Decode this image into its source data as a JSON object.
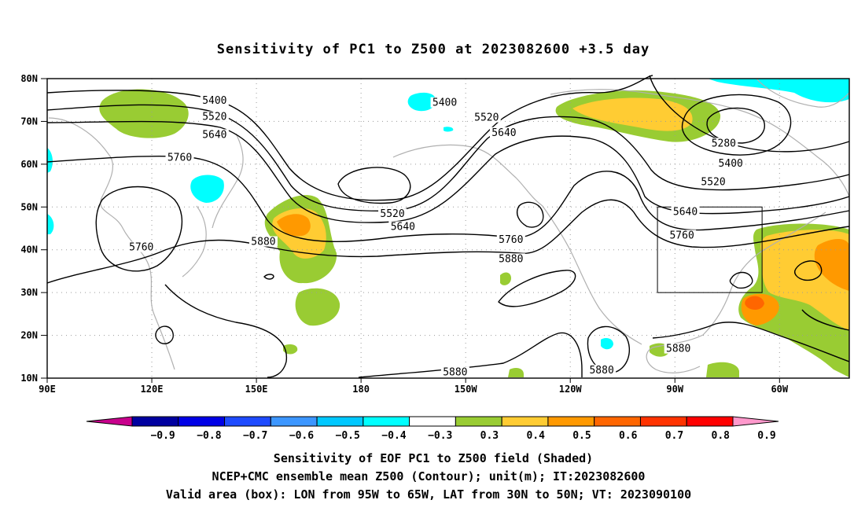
{
  "title": "Sensitivity of PC1 to Z500 at 2023082600 +3.5 day",
  "lat_labels": [
    "80N",
    "70N",
    "60N",
    "50N",
    "40N",
    "30N",
    "20N",
    "10N"
  ],
  "lon_labels": [
    "90E",
    "120E",
    "150E",
    "180",
    "150W",
    "120W",
    "90W",
    "60W"
  ],
  "colorbar": {
    "labels": [
      "−0.9",
      "−0.8",
      "−0.7",
      "−0.6",
      "−0.5",
      "−0.4",
      "−0.3",
      "0.3",
      "0.4",
      "0.5",
      "0.6",
      "0.7",
      "0.8",
      "0.9"
    ],
    "colors": [
      "#c8008c",
      "#0000a0",
      "#0000e6",
      "#1e4bff",
      "#3c96ff",
      "#00c8ff",
      "#00ffff",
      "#ffffff",
      "#99cc33",
      "#ffcc33",
      "#ff9900",
      "#ff6600",
      "#ff3300",
      "#ff0000",
      "#ff99cc"
    ]
  },
  "captions": {
    "line1": "Sensitivity of EOF PC1 to Z500 field (Shaded)",
    "line2": "NCEP+CMC ensemble mean Z500 (Contour); unit(m); IT:2023082600",
    "line3": "Valid area (box): LON from 95W to 65W, LAT from 30N to 50N; VT: 2023090100"
  },
  "contour_labels": [
    {
      "text": "5400",
      "lon": 138,
      "lat": 74.5
    },
    {
      "text": "5520",
      "lon": 138,
      "lat": 70.7
    },
    {
      "text": "5640",
      "lon": 138,
      "lat": 66.5
    },
    {
      "text": "5760",
      "lon": 128,
      "lat": 61.2
    },
    {
      "text": "5760",
      "lon": 117,
      "lat": 40.2
    },
    {
      "text": "5880",
      "lon": 152,
      "lat": 41.5
    },
    {
      "text": "5400",
      "lon": -156,
      "lat": 74.0
    },
    {
      "text": "5520",
      "lon": -144,
      "lat": 70.5
    },
    {
      "text": "5640",
      "lon": -139,
      "lat": 67.0
    },
    {
      "text": "5520",
      "lon": -171,
      "lat": 48.0
    },
    {
      "text": "5640",
      "lon": -168,
      "lat": 45.0
    },
    {
      "text": "5760",
      "lon": -137,
      "lat": 42.0
    },
    {
      "text": "5880",
      "lon": -137,
      "lat": 37.5
    },
    {
      "text": "5280",
      "lon": -76,
      "lat": 64.5
    },
    {
      "text": "5400",
      "lon": -74,
      "lat": 59.8
    },
    {
      "text": "5520",
      "lon": -79,
      "lat": 55.5
    },
    {
      "text": "5640",
      "lon": -87,
      "lat": 48.5
    },
    {
      "text": "5760",
      "lon": -88,
      "lat": 43.0
    },
    {
      "text": "5880",
      "lon": -89,
      "lat": 16.5
    },
    {
      "text": "5880",
      "lon": -111,
      "lat": 11.5
    },
    {
      "text": "5880",
      "lon": -153,
      "lat": 11.0
    }
  ],
  "valid_box": {
    "lon_min": -95,
    "lon_max": -65,
    "lat_min": 30,
    "lat_max": 50
  }
}
